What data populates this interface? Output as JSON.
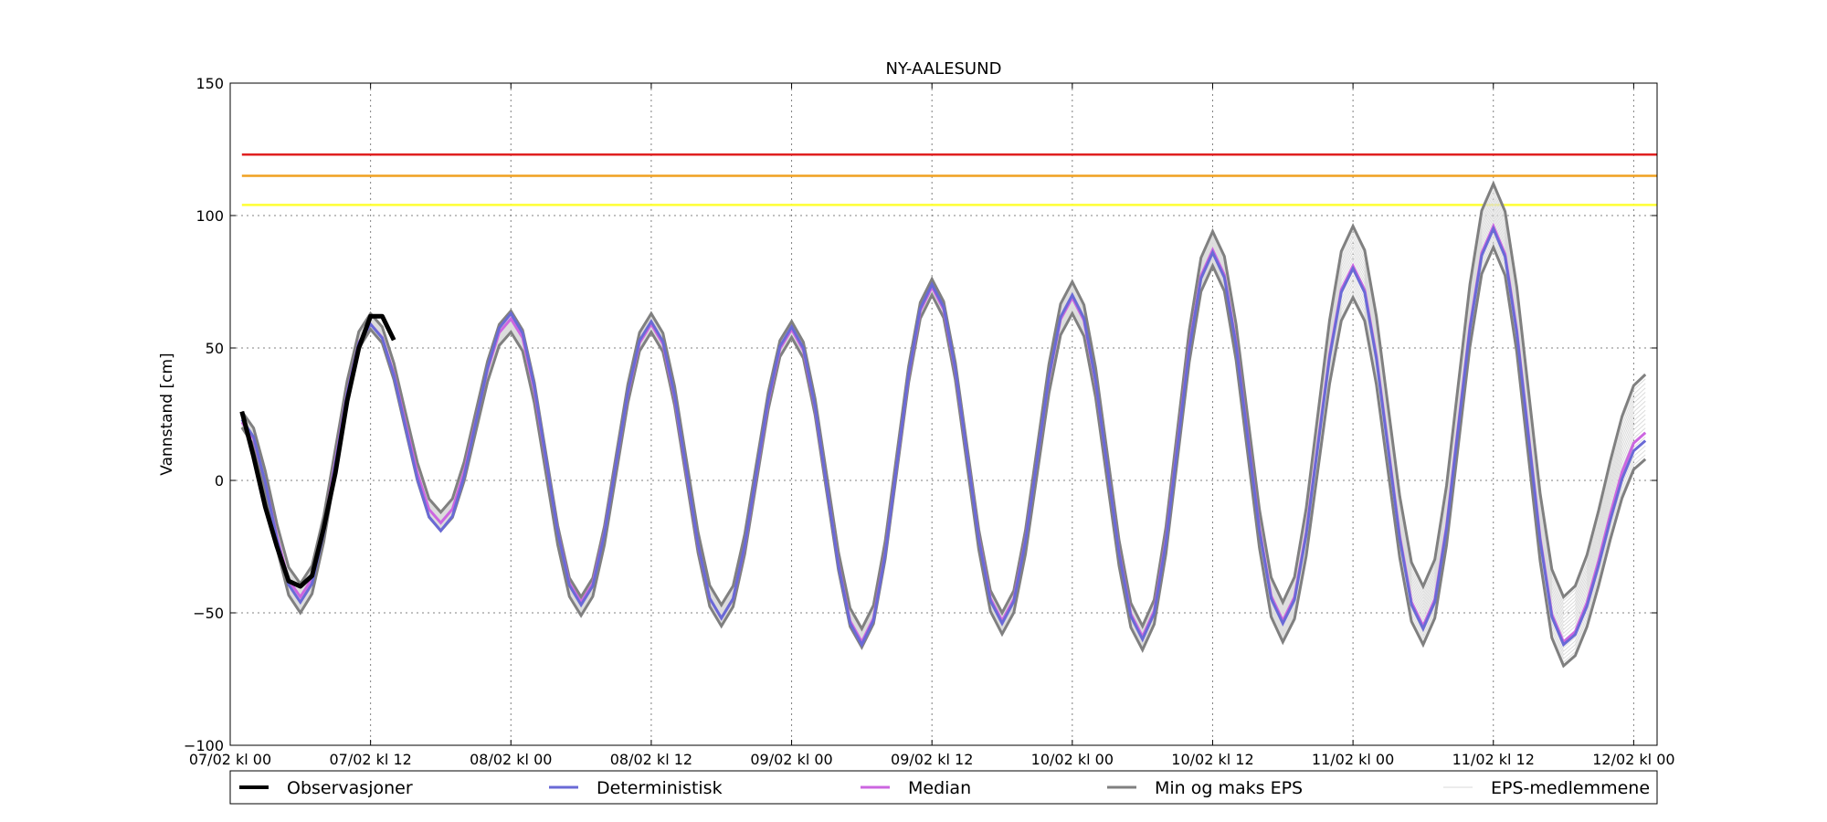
{
  "chart_data": {
    "type": "line",
    "title": "NY-AALESUND",
    "xlabel": "",
    "ylabel": "Vannstand [cm]",
    "xlim": [
      -1,
      121
    ],
    "ylim": [
      -100,
      150
    ],
    "x_ticks": [
      {
        "x": -1,
        "label": "07/02 kl 00"
      },
      {
        "x": 11,
        "label": "07/02 kl 12"
      },
      {
        "x": 23,
        "label": "08/02 kl 00"
      },
      {
        "x": 35,
        "label": "08/02 kl 12"
      },
      {
        "x": 47,
        "label": "09/02 kl 00"
      },
      {
        "x": 59,
        "label": "09/02 kl 12"
      },
      {
        "x": 71,
        "label": "10/02 kl 00"
      },
      {
        "x": 83,
        "label": "10/02 kl 12"
      },
      {
        "x": 95,
        "label": "11/02 kl 00"
      },
      {
        "x": 107,
        "label": "11/02 kl 12"
      },
      {
        "x": 119,
        "label": "12/02 kl 00"
      }
    ],
    "y_ticks": [
      {
        "y": 150,
        "label": "150"
      },
      {
        "y": 100,
        "label": "100"
      },
      {
        "y": 50,
        "label": "50"
      },
      {
        "y": 0,
        "label": "0"
      },
      {
        "y": -50,
        "label": "−50"
      },
      {
        "y": -100,
        "label": "−100"
      }
    ],
    "grid": true,
    "legend": {
      "placement": "bottom",
      "entries": [
        {
          "name": "Observasjoner",
          "color": "#000000"
        },
        {
          "name": "Deterministisk",
          "color": "#6a6ad6"
        },
        {
          "name": "Median",
          "color": "#cc66e0"
        },
        {
          "name": "Min og maks EPS",
          "color": "#808080"
        },
        {
          "name": "EPS-medlemmene",
          "color": "#d8d8d8"
        }
      ]
    },
    "threshold_lines": [
      {
        "y": 123,
        "color": "#e02020"
      },
      {
        "y": 115,
        "color": "#f0a020"
      },
      {
        "y": 104,
        "color": "#ffff33"
      }
    ],
    "peaks_deterministic": [
      [
        0,
        23
      ],
      [
        5,
        -46
      ],
      [
        11,
        59
      ],
      [
        17,
        -19
      ],
      [
        23,
        63
      ],
      [
        29,
        -47
      ],
      [
        35,
        60
      ],
      [
        41,
        -52
      ],
      [
        47,
        58
      ],
      [
        53,
        -62
      ],
      [
        59,
        74
      ],
      [
        65,
        -54
      ],
      [
        71,
        70
      ],
      [
        77,
        -60
      ],
      [
        83,
        86
      ],
      [
        89,
        -54
      ],
      [
        95,
        80
      ],
      [
        101,
        -56
      ],
      [
        107,
        95
      ],
      [
        113,
        -62
      ],
      [
        120,
        15
      ]
    ],
    "peaks_median": [
      [
        0,
        22
      ],
      [
        5,
        -44
      ],
      [
        11,
        59
      ],
      [
        17,
        -16
      ],
      [
        23,
        61
      ],
      [
        29,
        -46
      ],
      [
        35,
        59
      ],
      [
        41,
        -52
      ],
      [
        47,
        57
      ],
      [
        53,
        -61
      ],
      [
        59,
        73
      ],
      [
        65,
        -53
      ],
      [
        71,
        69
      ],
      [
        77,
        -59
      ],
      [
        83,
        87
      ],
      [
        89,
        -53
      ],
      [
        95,
        81
      ],
      [
        101,
        -55
      ],
      [
        107,
        96
      ],
      [
        113,
        -61
      ],
      [
        120,
        18
      ]
    ],
    "peaks_max": [
      [
        0,
        26
      ],
      [
        5,
        -39
      ],
      [
        11,
        63
      ],
      [
        17,
        -12
      ],
      [
        23,
        64
      ],
      [
        29,
        -44
      ],
      [
        35,
        63
      ],
      [
        41,
        -47
      ],
      [
        47,
        60
      ],
      [
        53,
        -56
      ],
      [
        59,
        76
      ],
      [
        65,
        -50
      ],
      [
        71,
        75
      ],
      [
        77,
        -55
      ],
      [
        83,
        94
      ],
      [
        89,
        -46
      ],
      [
        95,
        96
      ],
      [
        101,
        -40
      ],
      [
        107,
        112
      ],
      [
        113,
        -44
      ],
      [
        120,
        40
      ]
    ],
    "peaks_min": [
      [
        0,
        20
      ],
      [
        5,
        -50
      ],
      [
        11,
        57
      ],
      [
        17,
        -19
      ],
      [
        23,
        56
      ],
      [
        29,
        -51
      ],
      [
        35,
        56
      ],
      [
        41,
        -55
      ],
      [
        47,
        54
      ],
      [
        53,
        -63
      ],
      [
        59,
        70
      ],
      [
        65,
        -58
      ],
      [
        71,
        63
      ],
      [
        77,
        -64
      ],
      [
        83,
        81
      ],
      [
        89,
        -61
      ],
      [
        95,
        69
      ],
      [
        101,
        -62
      ],
      [
        107,
        88
      ],
      [
        113,
        -70
      ],
      [
        120,
        8
      ]
    ],
    "observations": [
      [
        0,
        26
      ],
      [
        1,
        9
      ],
      [
        2,
        -10
      ],
      [
        3,
        -25
      ],
      [
        4,
        -38
      ],
      [
        5,
        -40
      ],
      [
        6,
        -36
      ],
      [
        7,
        -18
      ],
      [
        8,
        3
      ],
      [
        9,
        30
      ],
      [
        10,
        50
      ],
      [
        11,
        62
      ],
      [
        12,
        62
      ],
      [
        13,
        53
      ]
    ],
    "eps_member_count": 18
  }
}
